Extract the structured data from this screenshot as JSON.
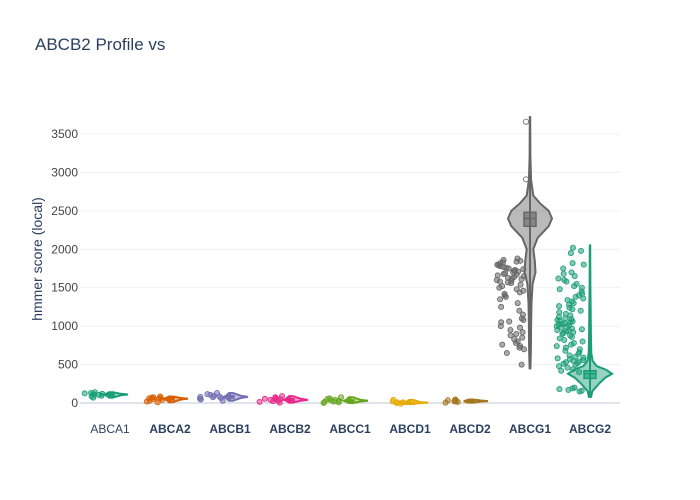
{
  "chart_data": {
    "type": "violin",
    "title": "ABCB2 Profile vs",
    "xlabel": "",
    "ylabel": "hmmer score (local)",
    "ylim": [
      -20,
      3750
    ],
    "yticks": [
      0,
      500,
      1000,
      1500,
      2000,
      2500,
      3000,
      3500
    ],
    "grid": true,
    "legend": "none",
    "categories": [
      "ABCA1",
      "ABCA2",
      "ABCB1",
      "ABCB2",
      "ABCC1",
      "ABCD1",
      "ABCD2",
      "ABCG1",
      "ABCG2"
    ],
    "series": [
      {
        "category": "ABCA1",
        "color": "#1b9e77",
        "bold": false,
        "median": 110,
        "q1": 100,
        "q3": 120,
        "min": 70,
        "max": 140,
        "spread": 40,
        "points": [
          70,
          85,
          95,
          105,
          110,
          115,
          120,
          125,
          130,
          140
        ]
      },
      {
        "category": "ABCA2",
        "color": "#d95f02",
        "bold": true,
        "median": 55,
        "q1": 45,
        "q3": 65,
        "min": 10,
        "max": 85,
        "spread": 40,
        "points": [
          10,
          20,
          30,
          40,
          50,
          55,
          60,
          65,
          70,
          75,
          85
        ]
      },
      {
        "category": "ABCB1",
        "color": "#7570b3",
        "bold": true,
        "median": 80,
        "q1": 65,
        "q3": 95,
        "min": 30,
        "max": 130,
        "spread": 45,
        "points": [
          30,
          45,
          55,
          65,
          75,
          80,
          85,
          95,
          105,
          115,
          130
        ]
      },
      {
        "category": "ABCB2",
        "color": "#e7298a",
        "bold": true,
        "median": 40,
        "q1": 30,
        "q3": 55,
        "min": 5,
        "max": 90,
        "spread": 45,
        "points": [
          5,
          15,
          25,
          30,
          40,
          45,
          50,
          55,
          65,
          75,
          90
        ]
      },
      {
        "category": "ABCC1",
        "color": "#66a61e",
        "bold": true,
        "median": 30,
        "q1": 20,
        "q3": 40,
        "min": 0,
        "max": 75,
        "spread": 40,
        "points": [
          0,
          10,
          15,
          20,
          30,
          35,
          40,
          50,
          60,
          75
        ]
      },
      {
        "category": "ABCD1",
        "color": "#e6ab02",
        "bold": true,
        "median": 5,
        "q1": 0,
        "q3": 10,
        "min": -10,
        "max": 40,
        "spread": 30,
        "points": [
          -10,
          0,
          5,
          8,
          10,
          20,
          40
        ]
      },
      {
        "category": "ABCD2",
        "color": "#a6761d",
        "bold": true,
        "median": 25,
        "q1": 18,
        "q3": 32,
        "min": 5,
        "max": 45,
        "spread": 35,
        "points": [
          5,
          15,
          20,
          25,
          30,
          35,
          45
        ]
      },
      {
        "category": "ABCG1",
        "color": "#666666",
        "bold": true,
        "median": 2400,
        "q1": 2300,
        "q3": 2480,
        "min": 450,
        "max": 3720,
        "spread": 50,
        "violin": [
          [
            450,
            0.02
          ],
          [
            700,
            0.04
          ],
          [
            1000,
            0.05
          ],
          [
            1300,
            0.07
          ],
          [
            1550,
            0.12
          ],
          [
            1700,
            0.25
          ],
          [
            1850,
            0.22
          ],
          [
            2000,
            0.15
          ],
          [
            2150,
            0.35
          ],
          [
            2300,
            0.85
          ],
          [
            2400,
            1.0
          ],
          [
            2500,
            0.85
          ],
          [
            2600,
            0.45
          ],
          [
            2700,
            0.15
          ],
          [
            2900,
            0.05
          ],
          [
            3200,
            0.02
          ],
          [
            3720,
            0.01
          ]
        ],
        "points": [
          3660,
          2910,
          1880,
          1860,
          1850,
          1840,
          1830,
          1820,
          1800,
          1790,
          1780,
          1770,
          1760,
          1750,
          1740,
          1730,
          1720,
          1710,
          1700,
          1690,
          1680,
          1670,
          1660,
          1650,
          1640,
          1630,
          1620,
          1610,
          1600,
          1590,
          1580,
          1570,
          1560,
          1540,
          1520,
          1500,
          1480,
          1460,
          1440,
          1420,
          1400,
          1380,
          1350,
          1300,
          1250,
          1200,
          1150,
          1100,
          1080,
          1060,
          1050,
          1000,
          980,
          950,
          920,
          900,
          880,
          850,
          830,
          800,
          780,
          760,
          740,
          720,
          700,
          650,
          500
        ]
      },
      {
        "category": "ABCG2",
        "color": "#1b9e77",
        "bold": true,
        "median": 380,
        "q1": 320,
        "q3": 420,
        "min": 80,
        "max": 2050,
        "spread": 50,
        "violin": [
          [
            80,
            0.05
          ],
          [
            150,
            0.1
          ],
          [
            250,
            0.4
          ],
          [
            330,
            0.7
          ],
          [
            380,
            1.0
          ],
          [
            430,
            0.75
          ],
          [
            480,
            0.3
          ],
          [
            550,
            0.12
          ],
          [
            650,
            0.06
          ],
          [
            900,
            0.04
          ],
          [
            1200,
            0.03
          ],
          [
            1500,
            0.02
          ],
          [
            2050,
            0.01
          ]
        ],
        "points": [
          2020,
          1980,
          1950,
          1820,
          1800,
          1750,
          1700,
          1680,
          1650,
          1620,
          1600,
          1580,
          1550,
          1520,
          1500,
          1480,
          1450,
          1420,
          1400,
          1380,
          1360,
          1340,
          1320,
          1300,
          1280,
          1260,
          1240,
          1220,
          1200,
          1180,
          1160,
          1140,
          1120,
          1100,
          1090,
          1080,
          1070,
          1060,
          1050,
          1040,
          1030,
          1020,
          1010,
          1000,
          990,
          980,
          970,
          960,
          950,
          940,
          930,
          920,
          910,
          900,
          880,
          860,
          840,
          820,
          800,
          780,
          760,
          740,
          720,
          700,
          680,
          660,
          640,
          620,
          600,
          590,
          580,
          570,
          560,
          550,
          540,
          530,
          520,
          510,
          500,
          480,
          460,
          440,
          420,
          400,
          200,
          190,
          180,
          170,
          160,
          150
        ]
      }
    ]
  }
}
